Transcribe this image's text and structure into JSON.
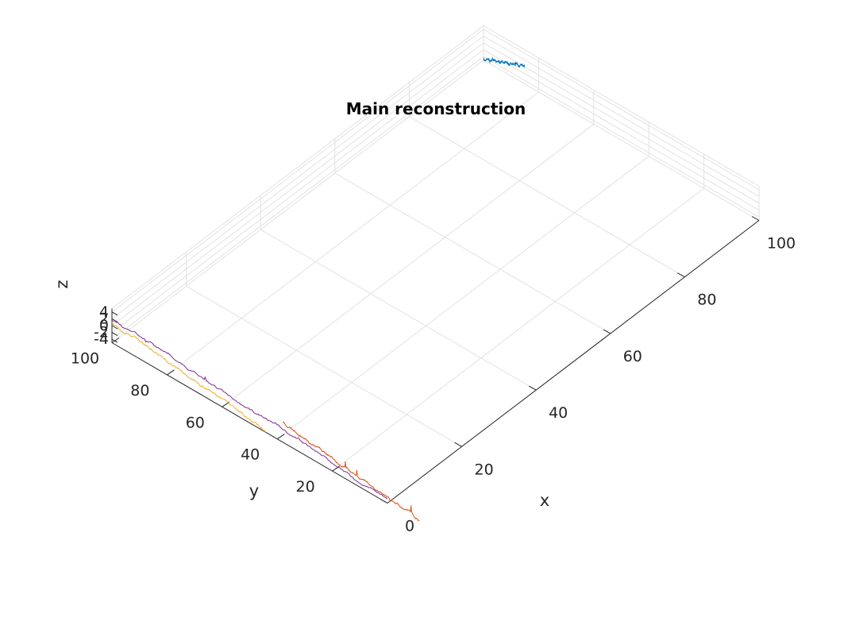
{
  "chart_data": {
    "type": "line",
    "view": "3d",
    "title": "Main reconstruction",
    "xlabel": "x",
    "ylabel": "y",
    "zlabel": "z",
    "xlim": [
      0,
      100
    ],
    "ylim": [
      0,
      100
    ],
    "zlim": [
      -5,
      5
    ],
    "xticks": [
      0,
      20,
      40,
      60,
      80,
      100
    ],
    "yticks": [
      20,
      40,
      60,
      80,
      100
    ],
    "zticks": [
      -4,
      -2,
      0,
      2,
      4
    ],
    "grid": true,
    "series": [
      {
        "color": "#0072BD",
        "plane": "x=100",
        "y_range": [
          85,
          100
        ],
        "z_start": 0.5,
        "z_end": -5,
        "seed": 11,
        "amp": 0.55
      },
      {
        "color": "#D95319",
        "plane": "y=0",
        "x_range": [
          20,
          36
        ],
        "z_start": 1,
        "z_end": -4.5,
        "seed": 23,
        "amp": 0.55
      },
      {
        "color": "#EDB120",
        "plane": "y=0",
        "x_range": [
          0,
          18
        ],
        "z_start": 1,
        "z_end": -4.5,
        "seed": 37,
        "amp": 0.45
      },
      {
        "color": "#7E2F8E",
        "plane": "x=0",
        "y_range": [
          0,
          100
        ],
        "z_start": -3.5,
        "z_end": 2,
        "seed": 53,
        "amp": 0.55
      }
    ]
  }
}
